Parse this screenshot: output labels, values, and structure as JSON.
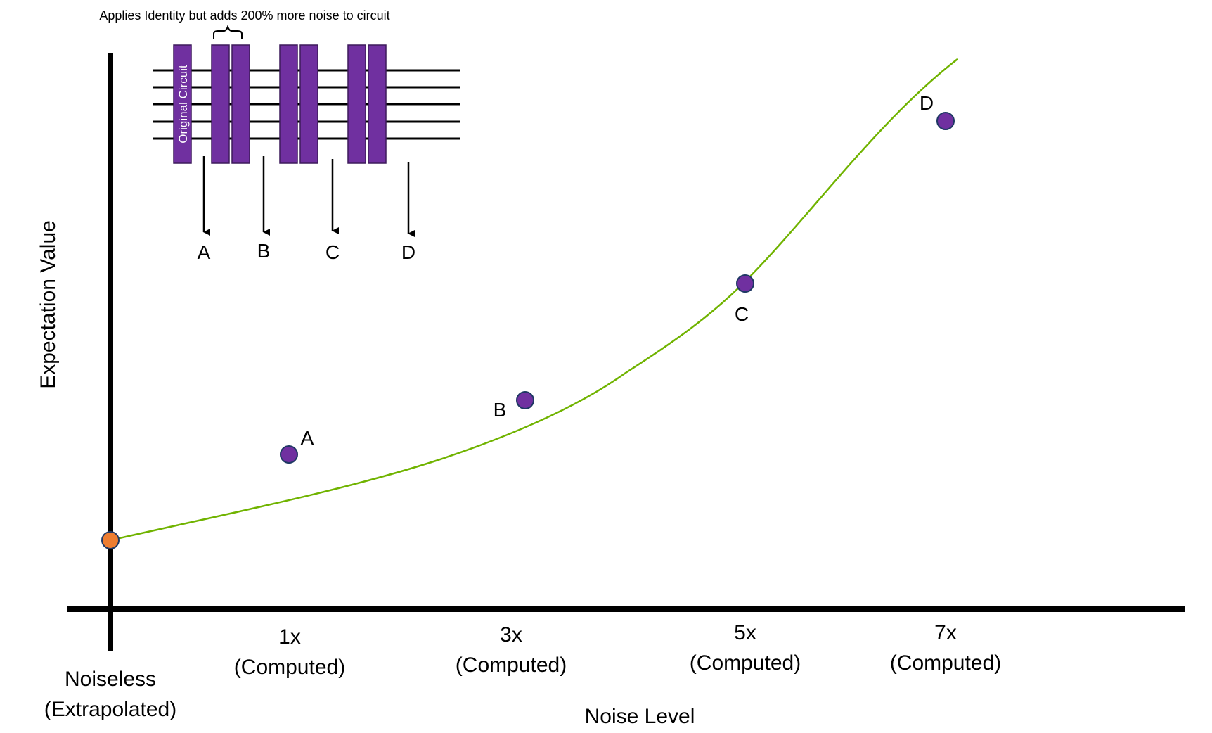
{
  "caption": "Applies Identity but adds 200% more noise to circuit",
  "original_circuit_label": "Original Circuit",
  "circuit_markers": [
    "A",
    "B",
    "C",
    "D"
  ],
  "axes": {
    "ylabel": "Expectation Value",
    "xlabel": "Noise Level"
  },
  "ticks": [
    {
      "line1": "Noiseless",
      "line2": "(Extrapolated)"
    },
    {
      "line1": "1x",
      "line2": "(Computed)"
    },
    {
      "line1": "3x",
      "line2": "(Computed)"
    },
    {
      "line1": "5x",
      "line2": "(Computed)"
    },
    {
      "line1": "7x",
      "line2": "(Computed)"
    }
  ],
  "points": [
    {
      "label": "A",
      "noise": 1
    },
    {
      "label": "B",
      "noise": 3
    },
    {
      "label": "C",
      "noise": 5
    },
    {
      "label": "D",
      "noise": 7
    }
  ],
  "colors": {
    "gate": "#7030a0",
    "point": "#7030a0",
    "extrapolated_point": "#ed7d31",
    "fit_curve": "#70b300",
    "axis": "#000000"
  }
}
